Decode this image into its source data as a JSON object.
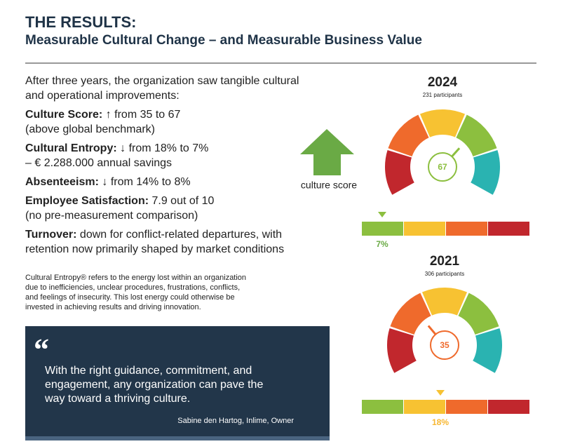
{
  "header": {
    "title": "THE RESULTS:",
    "subtitle": "Measurable Cultural Change – and Measurable Business Value"
  },
  "body": {
    "intro": [
      "After three years, the organization saw tangible cultural",
      "and operational improvements:"
    ],
    "items": [
      {
        "label": "Culture Score:",
        "lines": [
          " ↑ from 35 to 67",
          "(above global benchmark)"
        ]
      },
      {
        "label": "Cultural Entropy:",
        "lines": [
          " ↓ from 18% to 7%",
          "– € 2.288.000 annual savings"
        ]
      },
      {
        "label": "Absenteeism:",
        "lines": [
          " ↓ from 14% to 8%"
        ]
      },
      {
        "label": "Employee Satisfaction:",
        "lines": [
          " 7.9 out of 10",
          "(no pre-measurement comparison)"
        ]
      },
      {
        "label": "Turnover:",
        "lines": [
          " down for conflict-related departures, with",
          "retention now primarily shaped by market conditions"
        ]
      }
    ],
    "footnote": [
      "Cultural Entropy® refers to the energy lost within an organization",
      "due to inefficiencies, unclear procedures, frustrations, conflicts,",
      "and feelings of insecurity. This lost energy could otherwise be",
      "invested in achieving results and driving innovation."
    ]
  },
  "quote": {
    "mark": "“",
    "lines": [
      "With the right guidance, commitment, and",
      "engagement, any organization can pave the",
      "way toward a thriving culture."
    ],
    "author": "Sabine den Hartog, Inlime, Owner"
  },
  "visual": {
    "arrow_label": "culture score",
    "gauges": [
      {
        "year": "2024",
        "participants": "231 participants",
        "score": "67",
        "entropy": "7%"
      },
      {
        "year": "2021",
        "participants": "306 participants",
        "score": "35",
        "entropy": "18%"
      }
    ]
  }
}
